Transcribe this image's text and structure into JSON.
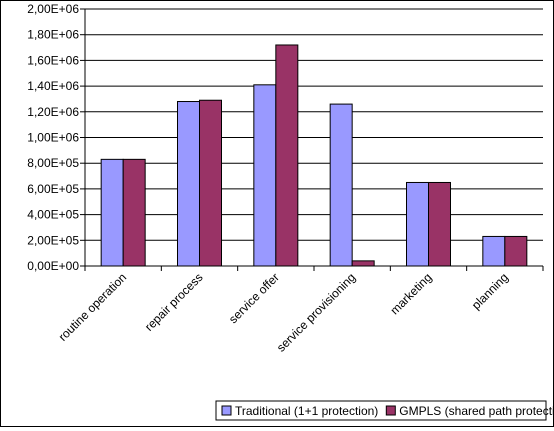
{
  "chart_data": {
    "type": "bar",
    "title": "",
    "xlabel": "",
    "ylabel": "",
    "categories": [
      "routine operation",
      "repair process",
      "service offer",
      "service provisioning",
      "marketing",
      "planning"
    ],
    "series": [
      {
        "name": "Traditional (1+1 protection)",
        "color": "#9999FF",
        "values": [
          830000,
          1280000,
          1410000,
          1260000,
          650000,
          230000
        ]
      },
      {
        "name": "GMPLS (shared path protection)",
        "color": "#993366",
        "values": [
          830000,
          1290000,
          1720000,
          40000,
          650000,
          230000
        ]
      }
    ],
    "ylim": [
      0,
      2000000
    ],
    "y_ticks": [
      0,
      200000,
      400000,
      600000,
      800000,
      1000000,
      1200000,
      1400000,
      1600000,
      1800000,
      2000000
    ],
    "y_tick_labels": [
      "0,00E+00",
      "2,00E+05",
      "4,00E+05",
      "6,00E+05",
      "8,00E+05",
      "1,00E+06",
      "1,20E+06",
      "1,40E+06",
      "1,60E+06",
      "1,80E+06",
      "2,00E+06"
    ],
    "grid": true,
    "legend_position": "bottom-right"
  }
}
